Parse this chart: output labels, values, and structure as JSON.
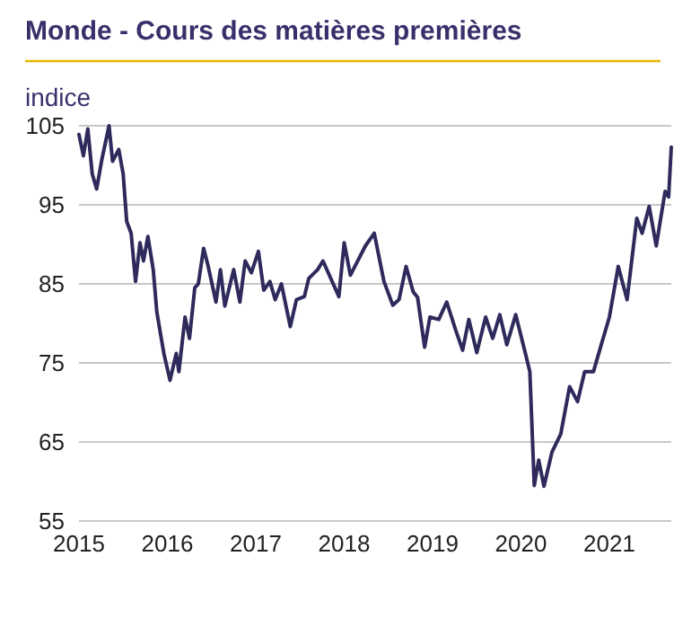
{
  "chart_data": {
    "type": "line",
    "title": "Monde - Cours des matières premières",
    "subtitle": "indice",
    "xlim": [
      2015,
      2021.7
    ],
    "xticks": [
      2015,
      2016,
      2017,
      2018,
      2019,
      2020,
      2021
    ],
    "ylim": [
      55,
      105
    ],
    "yticks": [
      55,
      65,
      75,
      85,
      95,
      105
    ],
    "grid": "y",
    "series": [
      {
        "color": "#2e2a5c",
        "x": [
          2015.0,
          2015.05,
          2015.1,
          2015.15,
          2015.2,
          2015.26,
          2015.34,
          2015.38,
          2015.45,
          2015.5,
          2015.54,
          2015.59,
          2015.64,
          2015.69,
          2015.73,
          2015.78,
          2015.84,
          2015.88,
          2015.96,
          2016.03,
          2016.1,
          2016.13,
          2016.2,
          2016.25,
          2016.31,
          2016.35,
          2016.41,
          2016.46,
          2016.55,
          2016.6,
          2016.65,
          2016.75,
          2016.82,
          2016.88,
          2016.95,
          2017.03,
          2017.09,
          2017.16,
          2017.22,
          2017.29,
          2017.39,
          2017.46,
          2017.55,
          2017.6,
          2017.7,
          2017.76,
          2017.94,
          2018.0,
          2018.07,
          2018.24,
          2018.34,
          2018.45,
          2018.55,
          2018.62,
          2018.7,
          2018.78,
          2018.83,
          2018.91,
          2018.97,
          2019.07,
          2019.16,
          2019.26,
          2019.34,
          2019.41,
          2019.5,
          2019.6,
          2019.68,
          2019.76,
          2019.84,
          2019.94,
          2020.05,
          2020.1,
          2020.15,
          2020.2,
          2020.26,
          2020.35,
          2020.45,
          2020.55,
          2020.64,
          2020.72,
          2020.82,
          2020.9,
          2021.0,
          2021.1,
          2021.2,
          2021.31,
          2021.37,
          2021.45,
          2021.53,
          2021.63,
          2021.67,
          2021.7
        ],
        "values": [
          103.9,
          101.2,
          104.6,
          98.9,
          97,
          100.8,
          105,
          100.5,
          102,
          98.9,
          92.9,
          91.4,
          85.3,
          90.2,
          87.9,
          91,
          86.8,
          81.5,
          76.2,
          72.8,
          76.2,
          73.9,
          80.8,
          78.1,
          84.5,
          85,
          89.5,
          87.3,
          82.7,
          86.8,
          82.2,
          86.8,
          82.7,
          87.9,
          86.4,
          89.1,
          84.2,
          85.3,
          83,
          85,
          79.6,
          83,
          83.4,
          85.7,
          86.8,
          87.9,
          83.4,
          90.2,
          86.1,
          89.8,
          91.4,
          85.3,
          82.3,
          83,
          87.2,
          84,
          83.3,
          77,
          80.8,
          80.5,
          82.7,
          79.2,
          76.6,
          80.5,
          76.3,
          80.8,
          78.1,
          81.1,
          77.3,
          81.1,
          76.2,
          73.9,
          59.5,
          62.7,
          59.4,
          63.7,
          66,
          72,
          70.1,
          73.9,
          73.9,
          77,
          80.8,
          87.2,
          83,
          93.3,
          91.4,
          94.8,
          89.8,
          96.7,
          96,
          102.3
        ]
      }
    ]
  }
}
